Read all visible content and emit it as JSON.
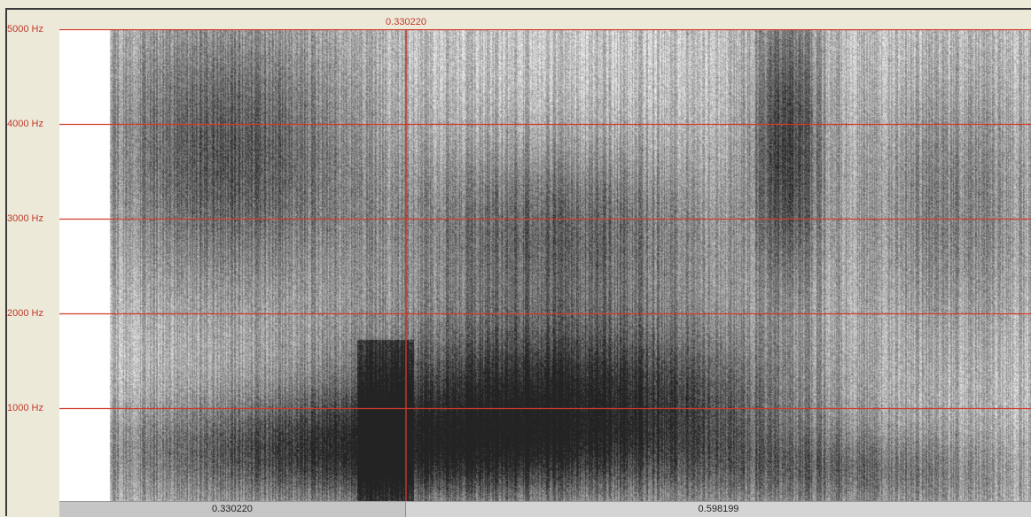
{
  "cursor": {
    "time_label": "0.330220"
  },
  "freq_axis": {
    "labels": [
      "5000 Hz",
      "4000 Hz",
      "3000 Hz",
      "2000 Hz",
      "1000 Hz"
    ]
  },
  "bottom_bar": {
    "left_segment": "0.330220",
    "right_segment": "0.598199"
  },
  "colors": {
    "grid": "#d23a2a",
    "cursor": "#c0392b",
    "window_bg": "#ece9d8",
    "plot_bg": "#ffffff"
  }
}
